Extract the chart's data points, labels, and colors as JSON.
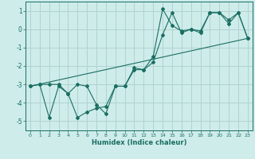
{
  "xlabel": "Humidex (Indice chaleur)",
  "bg_color": "#ceecea",
  "grid_color": "#b0d4d0",
  "line_color": "#1a6e62",
  "xlim": [
    -0.5,
    23.5
  ],
  "ylim": [
    -5.5,
    1.5
  ],
  "yticks": [
    1,
    0,
    -1,
    -2,
    -3,
    -4,
    -5
  ],
  "xticks": [
    0,
    1,
    2,
    3,
    4,
    5,
    6,
    7,
    8,
    9,
    10,
    11,
    12,
    13,
    14,
    15,
    16,
    17,
    18,
    19,
    20,
    21,
    22,
    23
  ],
  "series1_x": [
    0,
    1,
    2,
    3,
    4,
    5,
    6,
    7,
    8,
    9,
    10,
    11,
    12,
    13,
    14,
    15,
    16,
    17,
    18,
    19,
    20,
    21,
    22,
    23
  ],
  "series1_y": [
    -3.1,
    -3.0,
    -4.8,
    -3.1,
    -3.5,
    -4.8,
    -4.5,
    -4.3,
    -4.2,
    -3.1,
    -3.1,
    -2.2,
    -2.2,
    -1.5,
    1.1,
    0.2,
    -0.1,
    0.0,
    -0.2,
    0.9,
    0.9,
    0.5,
    0.9,
    -0.5
  ],
  "series2_x": [
    0,
    1,
    2,
    3,
    4,
    5,
    6,
    7,
    8,
    9,
    10,
    11,
    12,
    13,
    14,
    15,
    16,
    17,
    18,
    19,
    20,
    21,
    22,
    23
  ],
  "series2_y": [
    -3.1,
    -3.0,
    -3.0,
    -3.0,
    -3.5,
    -3.0,
    -3.1,
    -4.1,
    -4.6,
    -3.1,
    -3.1,
    -2.1,
    -2.2,
    -1.8,
    -0.3,
    0.9,
    -0.2,
    0.0,
    -0.1,
    0.9,
    0.9,
    0.3,
    0.9,
    -0.5
  ],
  "series3_x": [
    0,
    23
  ],
  "series3_y": [
    -3.1,
    -0.5
  ]
}
